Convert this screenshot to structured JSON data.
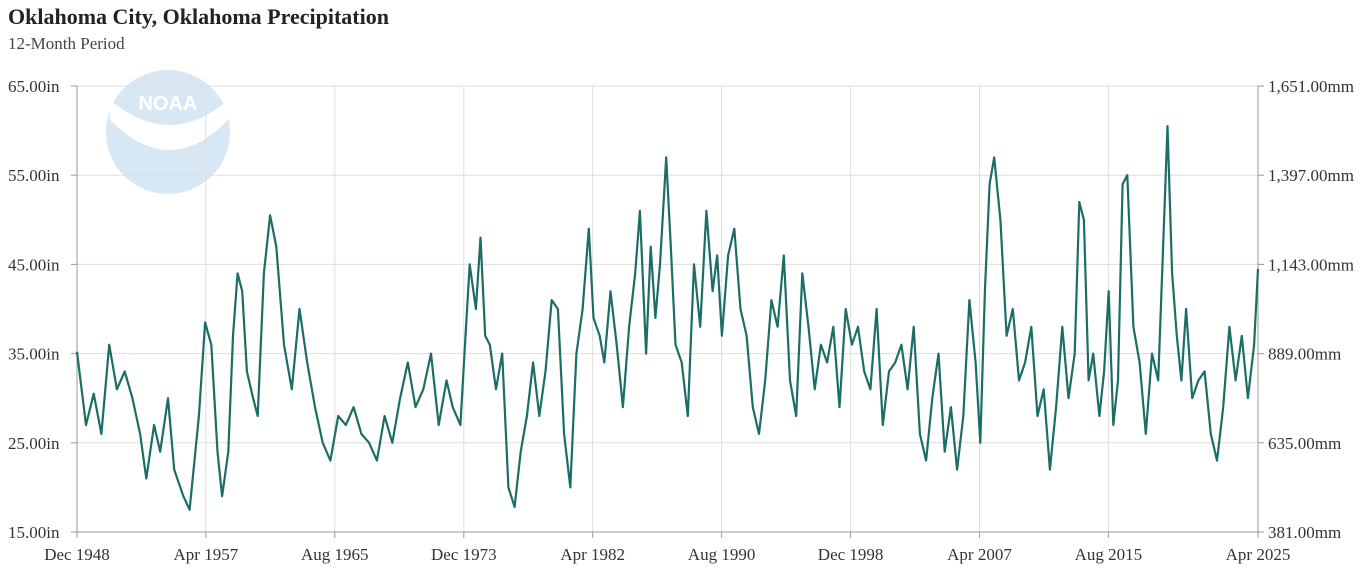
{
  "chart_data": {
    "type": "line",
    "title": "Oklahoma City, Oklahoma Precipitation",
    "subtitle": "12-Month Period",
    "logo": "NOAA",
    "y_left": {
      "ticks": [
        15,
        25,
        35,
        45,
        55,
        65
      ],
      "tick_labels": [
        "15.00in",
        "25.00in",
        "35.00in",
        "45.00in",
        "55.00in",
        "65.00in"
      ],
      "range": [
        15,
        65
      ]
    },
    "y_right": {
      "ticks": [
        381,
        635,
        889,
        1143,
        1397,
        1651
      ],
      "tick_labels": [
        "381.00mm",
        "635.00mm",
        "889.00mm",
        "1,143.00mm",
        "1,397.00mm",
        "1,651.00mm"
      ],
      "range": [
        381,
        1651
      ]
    },
    "x_axis": {
      "tick_labels": [
        "Dec 1948",
        "Apr 1957",
        "Aug 1965",
        "Dec 1973",
        "Apr 1982",
        "Aug 1990",
        "Dec 1998",
        "Apr 2007",
        "Aug 2015",
        "Apr 2025"
      ],
      "tick_years": [
        1948.92,
        1957.25,
        1965.58,
        1973.92,
        1982.25,
        1990.58,
        1998.92,
        2007.25,
        2015.58,
        2025.25
      ],
      "range": [
        1948.92,
        2025.25
      ]
    },
    "grid": true,
    "line_color": "#1b6e66",
    "series": [
      {
        "x": [
          1948.92,
          1949.5,
          1950,
          1950.5,
          1951,
          1951.5,
          1952,
          1952.5,
          1953,
          1953.4,
          1953.9,
          1954.3,
          1954.8,
          1955.2,
          1955.8,
          1956.2,
          1956.8,
          1957.2,
          1957.6,
          1958.0,
          1958.3,
          1958.7,
          1959.0,
          1959.3,
          1959.6,
          1959.9,
          1960.3,
          1960.6,
          1961.0,
          1961.4,
          1961.8,
          1962.3,
          1962.8,
          1963.3,
          1963.8,
          1964.3,
          1964.8,
          1965.3,
          1965.8,
          1966.3,
          1966.8,
          1967.3,
          1967.8,
          1968.3,
          1968.8,
          1969.3,
          1969.8,
          1970.3,
          1970.8,
          1971.3,
          1971.8,
          1972.3,
          1972.8,
          1973.2,
          1973.7,
          1974.0,
          1974.3,
          1974.7,
          1975.0,
          1975.3,
          1975.6,
          1976.0,
          1976.4,
          1976.8,
          1977.2,
          1977.6,
          1978.0,
          1978.4,
          1978.8,
          1979.2,
          1979.6,
          1980.0,
          1980.4,
          1980.8,
          1981.2,
          1981.6,
          1982.0,
          1982.3,
          1982.7,
          1983.0,
          1983.4,
          1983.8,
          1984.2,
          1984.6,
          1985.0,
          1985.3,
          1985.7,
          1986.0,
          1986.3,
          1986.6,
          1987.0,
          1987.3,
          1987.6,
          1988.0,
          1988.4,
          1988.8,
          1989.2,
          1989.6,
          1990.0,
          1990.3,
          1990.6,
          1991.0,
          1991.4,
          1991.8,
          1992.2,
          1992.6,
          1993.0,
          1993.4,
          1993.8,
          1994.2,
          1994.6,
          1995.0,
          1995.4,
          1995.8,
          1996.2,
          1996.6,
          1997.0,
          1997.4,
          1997.8,
          1998.2,
          1998.6,
          1999.0,
          1999.4,
          1999.8,
          2000.2,
          2000.6,
          2001.0,
          2001.4,
          2001.8,
          2002.2,
          2002.6,
          2003.0,
          2003.4,
          2003.8,
          2004.2,
          2004.6,
          2005.0,
          2005.4,
          2005.8,
          2006.2,
          2006.6,
          2007.0,
          2007.3,
          2007.6,
          2007.9,
          2008.2,
          2008.6,
          2009.0,
          2009.4,
          2009.8,
          2010.2,
          2010.6,
          2011.0,
          2011.4,
          2011.8,
          2012.2,
          2012.6,
          2013.0,
          2013.4,
          2013.7,
          2014.0,
          2014.3,
          2014.6,
          2015.0,
          2015.3,
          2015.6,
          2015.9,
          2016.2,
          2016.5,
          2016.8,
          2017.2,
          2017.6,
          2018.0,
          2018.4,
          2018.8,
          2019.1,
          2019.4,
          2019.7,
          2020.0,
          2020.3,
          2020.6,
          2021.0,
          2021.4,
          2021.8,
          2022.2,
          2022.6,
          2023.0,
          2023.4,
          2023.8,
          2024.2,
          2024.6,
          2025.0,
          2025.25
        ],
        "y": [
          35.2,
          27,
          30.5,
          26,
          36,
          31,
          33,
          30,
          26,
          21,
          27,
          24,
          30,
          22,
          19,
          17.5,
          28,
          38.5,
          36,
          24,
          19,
          24,
          37,
          44,
          42,
          33,
          30,
          28,
          44,
          50.5,
          47,
          36,
          31,
          40,
          34,
          29,
          25,
          23,
          28,
          27,
          29,
          26,
          25,
          23,
          28,
          25,
          30,
          34,
          29,
          31,
          35,
          27,
          32,
          29,
          27,
          36,
          45,
          40,
          48,
          37,
          36,
          31,
          35,
          20,
          17.8,
          24,
          28,
          34,
          28,
          33,
          41,
          40,
          26,
          20,
          35,
          40,
          49,
          39,
          37,
          34,
          42,
          36,
          29,
          38,
          44,
          51,
          35,
          47,
          39,
          45,
          57,
          47,
          36,
          34,
          28,
          45,
          38,
          51,
          42,
          46,
          37,
          46,
          49,
          40,
          37,
          29,
          26,
          32,
          41,
          38,
          46,
          32,
          28,
          44,
          38,
          31,
          36,
          34,
          38,
          29,
          40,
          36,
          38,
          33,
          31,
          40,
          27,
          33,
          34,
          36,
          31,
          38,
          26,
          23,
          30,
          35,
          24,
          29,
          22,
          28,
          41,
          34,
          25,
          42,
          54,
          57,
          50,
          37,
          40,
          32,
          34,
          38,
          28,
          31,
          22,
          29,
          38,
          30,
          35,
          52,
          50,
          32,
          35,
          28,
          33,
          42,
          27,
          32,
          54,
          55,
          38,
          34,
          26,
          35,
          32,
          46,
          60.5,
          44,
          37,
          32,
          40,
          30,
          32,
          33,
          26,
          23,
          29,
          38,
          32,
          37,
          30,
          36,
          44.5
        ]
      }
    ]
  }
}
